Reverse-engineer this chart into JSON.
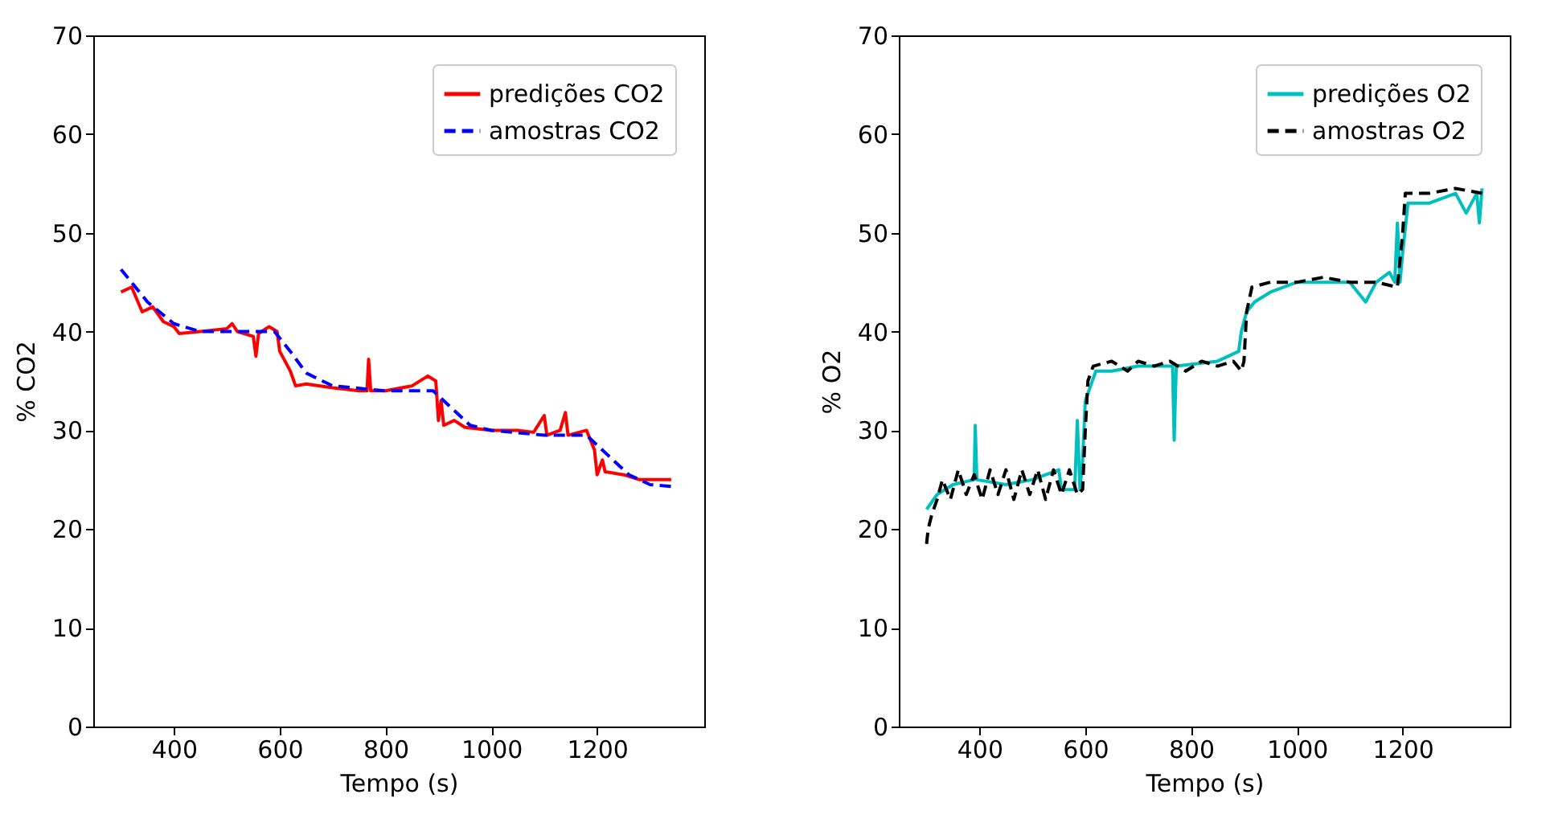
{
  "chart_data": [
    {
      "type": "line",
      "xlabel": "Tempo (s)",
      "ylabel": "% CO2",
      "xlim": [
        247.5,
        1402.5
      ],
      "xticks": [
        400,
        600,
        800,
        1000,
        1200
      ],
      "ylim": [
        0,
        70
      ],
      "yticks": [
        0,
        10,
        20,
        30,
        40,
        50,
        60,
        70
      ],
      "grid": false,
      "legend": "top right",
      "series": [
        {
          "name": "predições CO2",
          "color": "#ff0000",
          "line_style": "solid",
          "x": [
            300,
            320,
            340,
            360,
            380,
            400,
            410,
            450,
            500,
            510,
            520,
            550,
            555,
            560,
            580,
            595,
            600,
            610,
            620,
            630,
            650,
            700,
            750,
            765,
            768,
            772,
            800,
            850,
            880,
            895,
            900,
            905,
            910,
            930,
            950,
            1000,
            1050,
            1080,
            1100,
            1105,
            1130,
            1140,
            1145,
            1180,
            1195,
            1200,
            1210,
            1215,
            1250,
            1280,
            1300,
            1340
          ],
          "values": [
            44,
            44.5,
            42,
            42.5,
            41,
            40.5,
            39.8,
            40,
            40.3,
            40.8,
            40,
            39.5,
            37.5,
            39.8,
            40.5,
            40,
            38,
            37,
            36,
            34.5,
            34.7,
            34.3,
            34,
            34,
            37.2,
            34,
            34,
            34.5,
            35.5,
            35,
            31,
            33,
            30.5,
            31,
            30.3,
            30,
            30,
            29.8,
            31.5,
            29.5,
            30,
            31.8,
            29.5,
            30,
            28,
            25.5,
            27,
            25.8,
            25.5,
            25,
            25,
            25
          ]
        },
        {
          "name": "amostras CO2",
          "color": "#0000ff",
          "line_style": "dashed",
          "x": [
            300,
            350,
            400,
            450,
            550,
            590,
            620,
            650,
            700,
            800,
            890,
            920,
            960,
            1000,
            1100,
            1180,
            1220,
            1260,
            1300,
            1345
          ],
          "values": [
            46.3,
            43,
            40.8,
            40,
            40,
            40,
            38,
            35.8,
            34.5,
            34,
            34,
            32.5,
            30.5,
            30,
            29.5,
            29.5,
            27.5,
            25.5,
            24.5,
            24.3
          ]
        }
      ]
    },
    {
      "type": "line",
      "xlabel": "Tempo (s)",
      "ylabel": "% O2",
      "xlim": [
        247.5,
        1402.5
      ],
      "xticks": [
        400,
        600,
        800,
        1000,
        1200
      ],
      "ylim": [
        0,
        70
      ],
      "yticks": [
        0,
        10,
        20,
        30,
        40,
        50,
        60,
        70
      ],
      "grid": false,
      "legend": "top right",
      "series": [
        {
          "name": "predições O2",
          "color": "#00bfbf",
          "line_style": "solid",
          "x": [
            300,
            320,
            350,
            390,
            392,
            395,
            450,
            500,
            550,
            555,
            580,
            585,
            590,
            595,
            600,
            620,
            650,
            700,
            765,
            768,
            772,
            850,
            890,
            895,
            905,
            920,
            950,
            1000,
            1100,
            1130,
            1150,
            1175,
            1185,
            1190,
            1195,
            1200,
            1210,
            1250,
            1300,
            1320,
            1340,
            1345,
            1350
          ],
          "values": [
            22,
            23.5,
            24.5,
            25,
            30.5,
            25,
            24.5,
            25,
            26,
            24,
            24,
            31,
            24,
            27,
            33,
            36,
            36,
            36.5,
            36.5,
            29,
            36.5,
            37,
            38,
            40,
            42,
            43,
            44,
            45,
            45,
            43,
            45,
            46,
            45,
            51,
            45,
            48,
            53,
            53,
            54,
            52,
            54,
            51,
            54.5
          ]
        },
        {
          "name": "amostras O2",
          "color": "#000000",
          "line_style": "dashed",
          "x": [
            300,
            303,
            310,
            320,
            330,
            345,
            360,
            375,
            390,
            405,
            420,
            435,
            450,
            465,
            480,
            495,
            510,
            525,
            540,
            555,
            570,
            585,
            595,
            600,
            605,
            615,
            650,
            680,
            700,
            730,
            760,
            790,
            820,
            850,
            880,
            895,
            900,
            905,
            915,
            950,
            1000,
            1050,
            1100,
            1150,
            1190,
            1200,
            1205,
            1250,
            1300,
            1350
          ],
          "values": [
            18.5,
            20,
            21.5,
            23,
            25,
            23,
            26,
            23.5,
            25.5,
            23,
            26,
            23.5,
            26,
            23,
            26,
            23.5,
            26,
            23,
            26,
            23.5,
            26,
            23.5,
            24,
            30,
            35,
            36.5,
            37,
            36,
            37,
            36.5,
            37,
            36,
            37,
            36.5,
            37,
            36,
            37,
            42,
            44.5,
            45,
            45,
            45.5,
            45,
            45,
            44.5,
            50,
            54,
            54,
            54.5,
            54
          ]
        }
      ]
    }
  ]
}
